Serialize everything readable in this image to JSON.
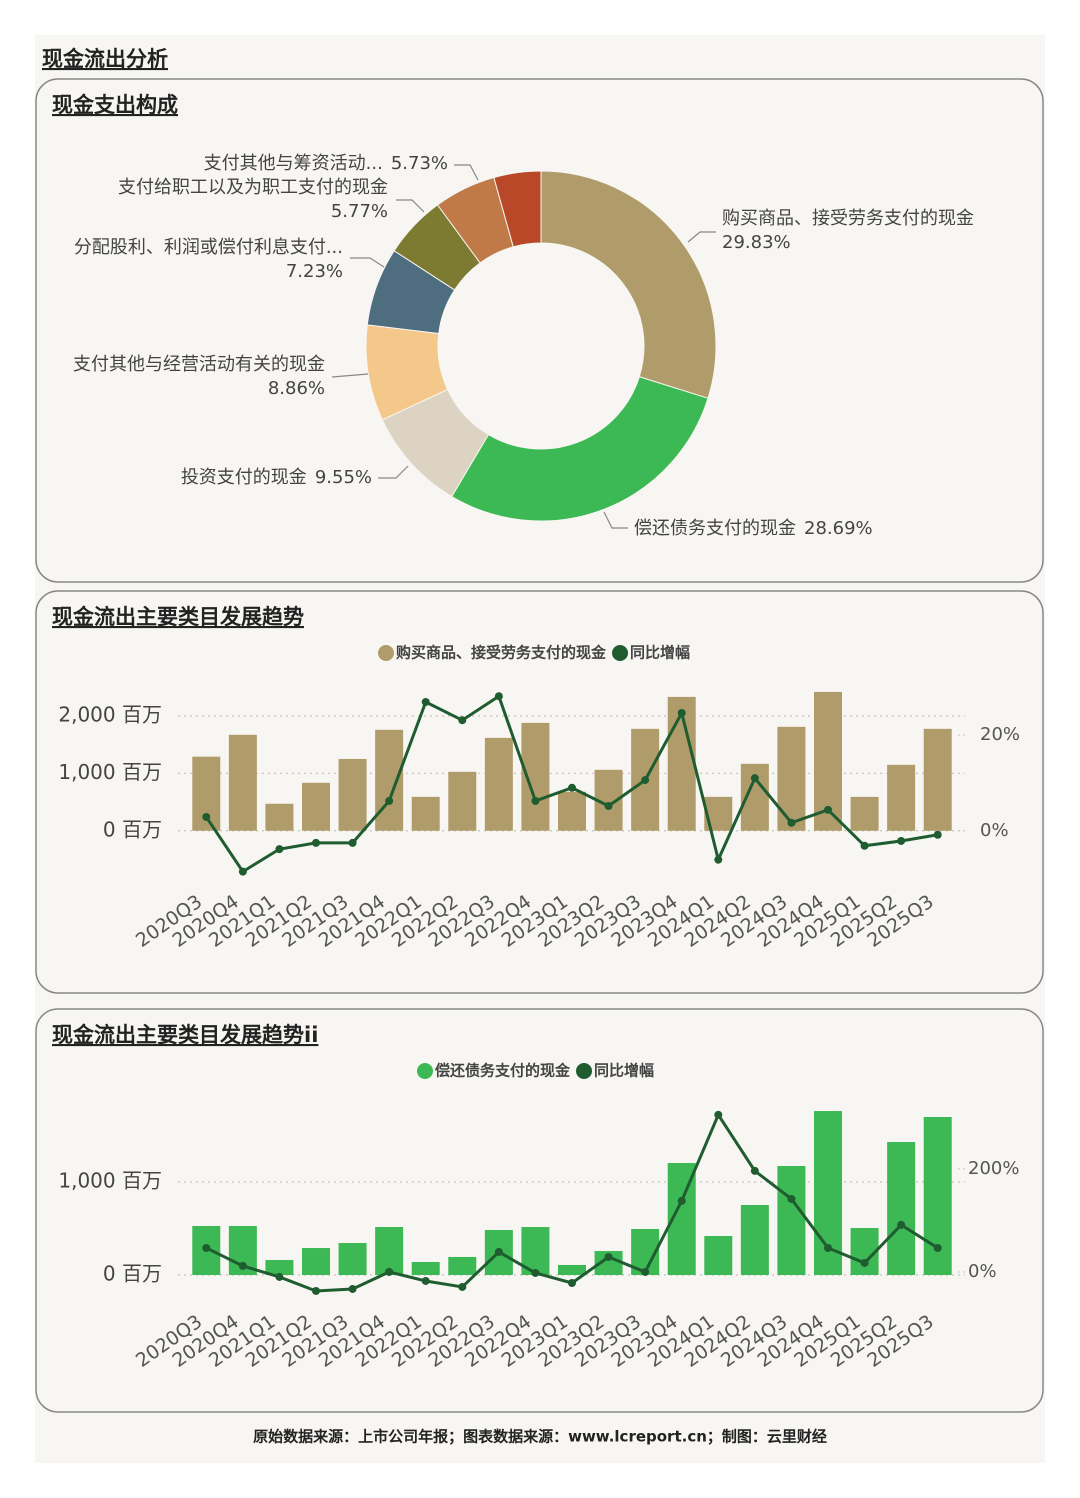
{
  "title": "现金流出分析",
  "footer": "原始数据来源：上市公司年报；图表数据来源：www.lcreport.cn；制图：云里财经",
  "chart_data": [
    {
      "type": "pie",
      "title": "现金支出构成",
      "categories": [
        "购买商品、接受劳务支付的现金",
        "偿还债务支付的现金",
        "投资支付的现金",
        "支付其他与经营活动有关的现金",
        "分配股利、利润或偿付利息支付...",
        "支付给职工以及为职工支付的现金",
        "支付其他与筹资活动...",
        null
      ],
      "values": [
        29.83,
        28.69,
        9.55,
        8.86,
        7.23,
        5.77,
        5.73,
        4.34
      ],
      "value_labels": [
        "29.83%",
        "28.69%",
        "9.55%",
        "8.86%",
        "7.23%",
        "5.77%",
        "5.73%",
        null
      ],
      "colors": [
        "#b09c6a",
        "#3cb854",
        "#ddd3c3",
        "#f4c88a",
        "#4e6e80",
        "#7d7a31",
        "#c07a48",
        "#b84828"
      ]
    },
    {
      "type": "bar",
      "title": "现金流出主要类目发展趋势",
      "categories": [
        "2020Q3",
        "2020Q4",
        "2021Q1",
        "2021Q2",
        "2021Q3",
        "2021Q4",
        "2022Q1",
        "2022Q2",
        "2022Q3",
        "2022Q4",
        "2023Q1",
        "2023Q2",
        "2023Q3",
        "2023Q4",
        "2024Q1",
        "2024Q2",
        "2024Q3",
        "2024Q4",
        "2025Q1",
        "2025Q2",
        "2025Q3"
      ],
      "series": [
        {
          "name": "购买商品、接受劳务支付的现金",
          "color": "#b09c6a",
          "values": [
            1290,
            1670,
            470,
            835,
            1250,
            1757,
            590,
            1026,
            1617,
            1878,
            678,
            1061,
            1774,
            2330,
            590,
            1165,
            1809,
            2417,
            590,
            1148,
            1774
          ]
        },
        {
          "name": "同比增幅",
          "color": "#1f5c30",
          "type": "line",
          "axis": "y2",
          "values": [
            2.9,
            -8.5,
            -3.8,
            -2.5,
            -2.5,
            6.25,
            26.9,
            23.1,
            28.1,
            6.25,
            9.0,
            5.2,
            10.6,
            24.6,
            -6.0,
            11.0,
            1.7,
            4.4,
            -3.1,
            -2.1,
            -0.8
          ]
        }
      ],
      "ylim": [
        -770,
        2450
      ],
      "yticks": [
        {
          "value": 0,
          "label": "0 百万"
        },
        {
          "value": 1000,
          "label": "1,000 百万"
        },
        {
          "value": 2000,
          "label": "2,000 百万"
        }
      ],
      "y2lim": [
        -9.2,
        29.4
      ],
      "y2ticks": [
        {
          "value": 0,
          "label": "0%"
        },
        {
          "value": 20,
          "label": "20%"
        }
      ],
      "grid": true,
      "legend": "top"
    },
    {
      "type": "bar",
      "title": "现金流出主要类目发展趋势ii",
      "categories": [
        "2020Q3",
        "2020Q4",
        "2021Q1",
        "2021Q2",
        "2021Q3",
        "2021Q4",
        "2022Q1",
        "2022Q2",
        "2022Q3",
        "2022Q4",
        "2023Q1",
        "2023Q2",
        "2023Q3",
        "2023Q4",
        "2024Q1",
        "2024Q2",
        "2024Q3",
        "2024Q4",
        "2025Q1",
        "2025Q2",
        "2025Q3"
      ],
      "series": [
        {
          "name": "偿还债务支付的现金",
          "color": "#3cb854",
          "values": [
            527,
            527,
            161,
            290,
            344,
            516,
            140,
            194,
            484,
            516,
            108,
            258,
            495,
            1204,
            419,
            753,
            1172,
            1763,
            505,
            1430,
            1699
          ]
        },
        {
          "name": "同比增幅",
          "color": "#1f5c30",
          "type": "line",
          "axis": "y2",
          "values": [
            46.6,
            11.7,
            -9.7,
            -36.9,
            -33.0,
            0,
            -17.5,
            -29.1,
            38.8,
            -1.9,
            -21.4,
            29.1,
            0,
            137.9,
            304.9,
            196.1,
            141.7,
            46.6,
            17.5,
            91.3,
            46.6
          ]
        }
      ],
      "ylim": [
        -215,
        1828
      ],
      "yticks": [
        {
          "value": 0,
          "label": "0 百万"
        },
        {
          "value": 1000,
          "label": "1,000 百万"
        }
      ],
      "y2lim": [
        -44.7,
        324
      ],
      "y2ticks": [
        {
          "value": 0,
          "label": "0%"
        },
        {
          "value": 200,
          "label": "200%"
        }
      ],
      "grid": true,
      "legend": "top"
    }
  ]
}
